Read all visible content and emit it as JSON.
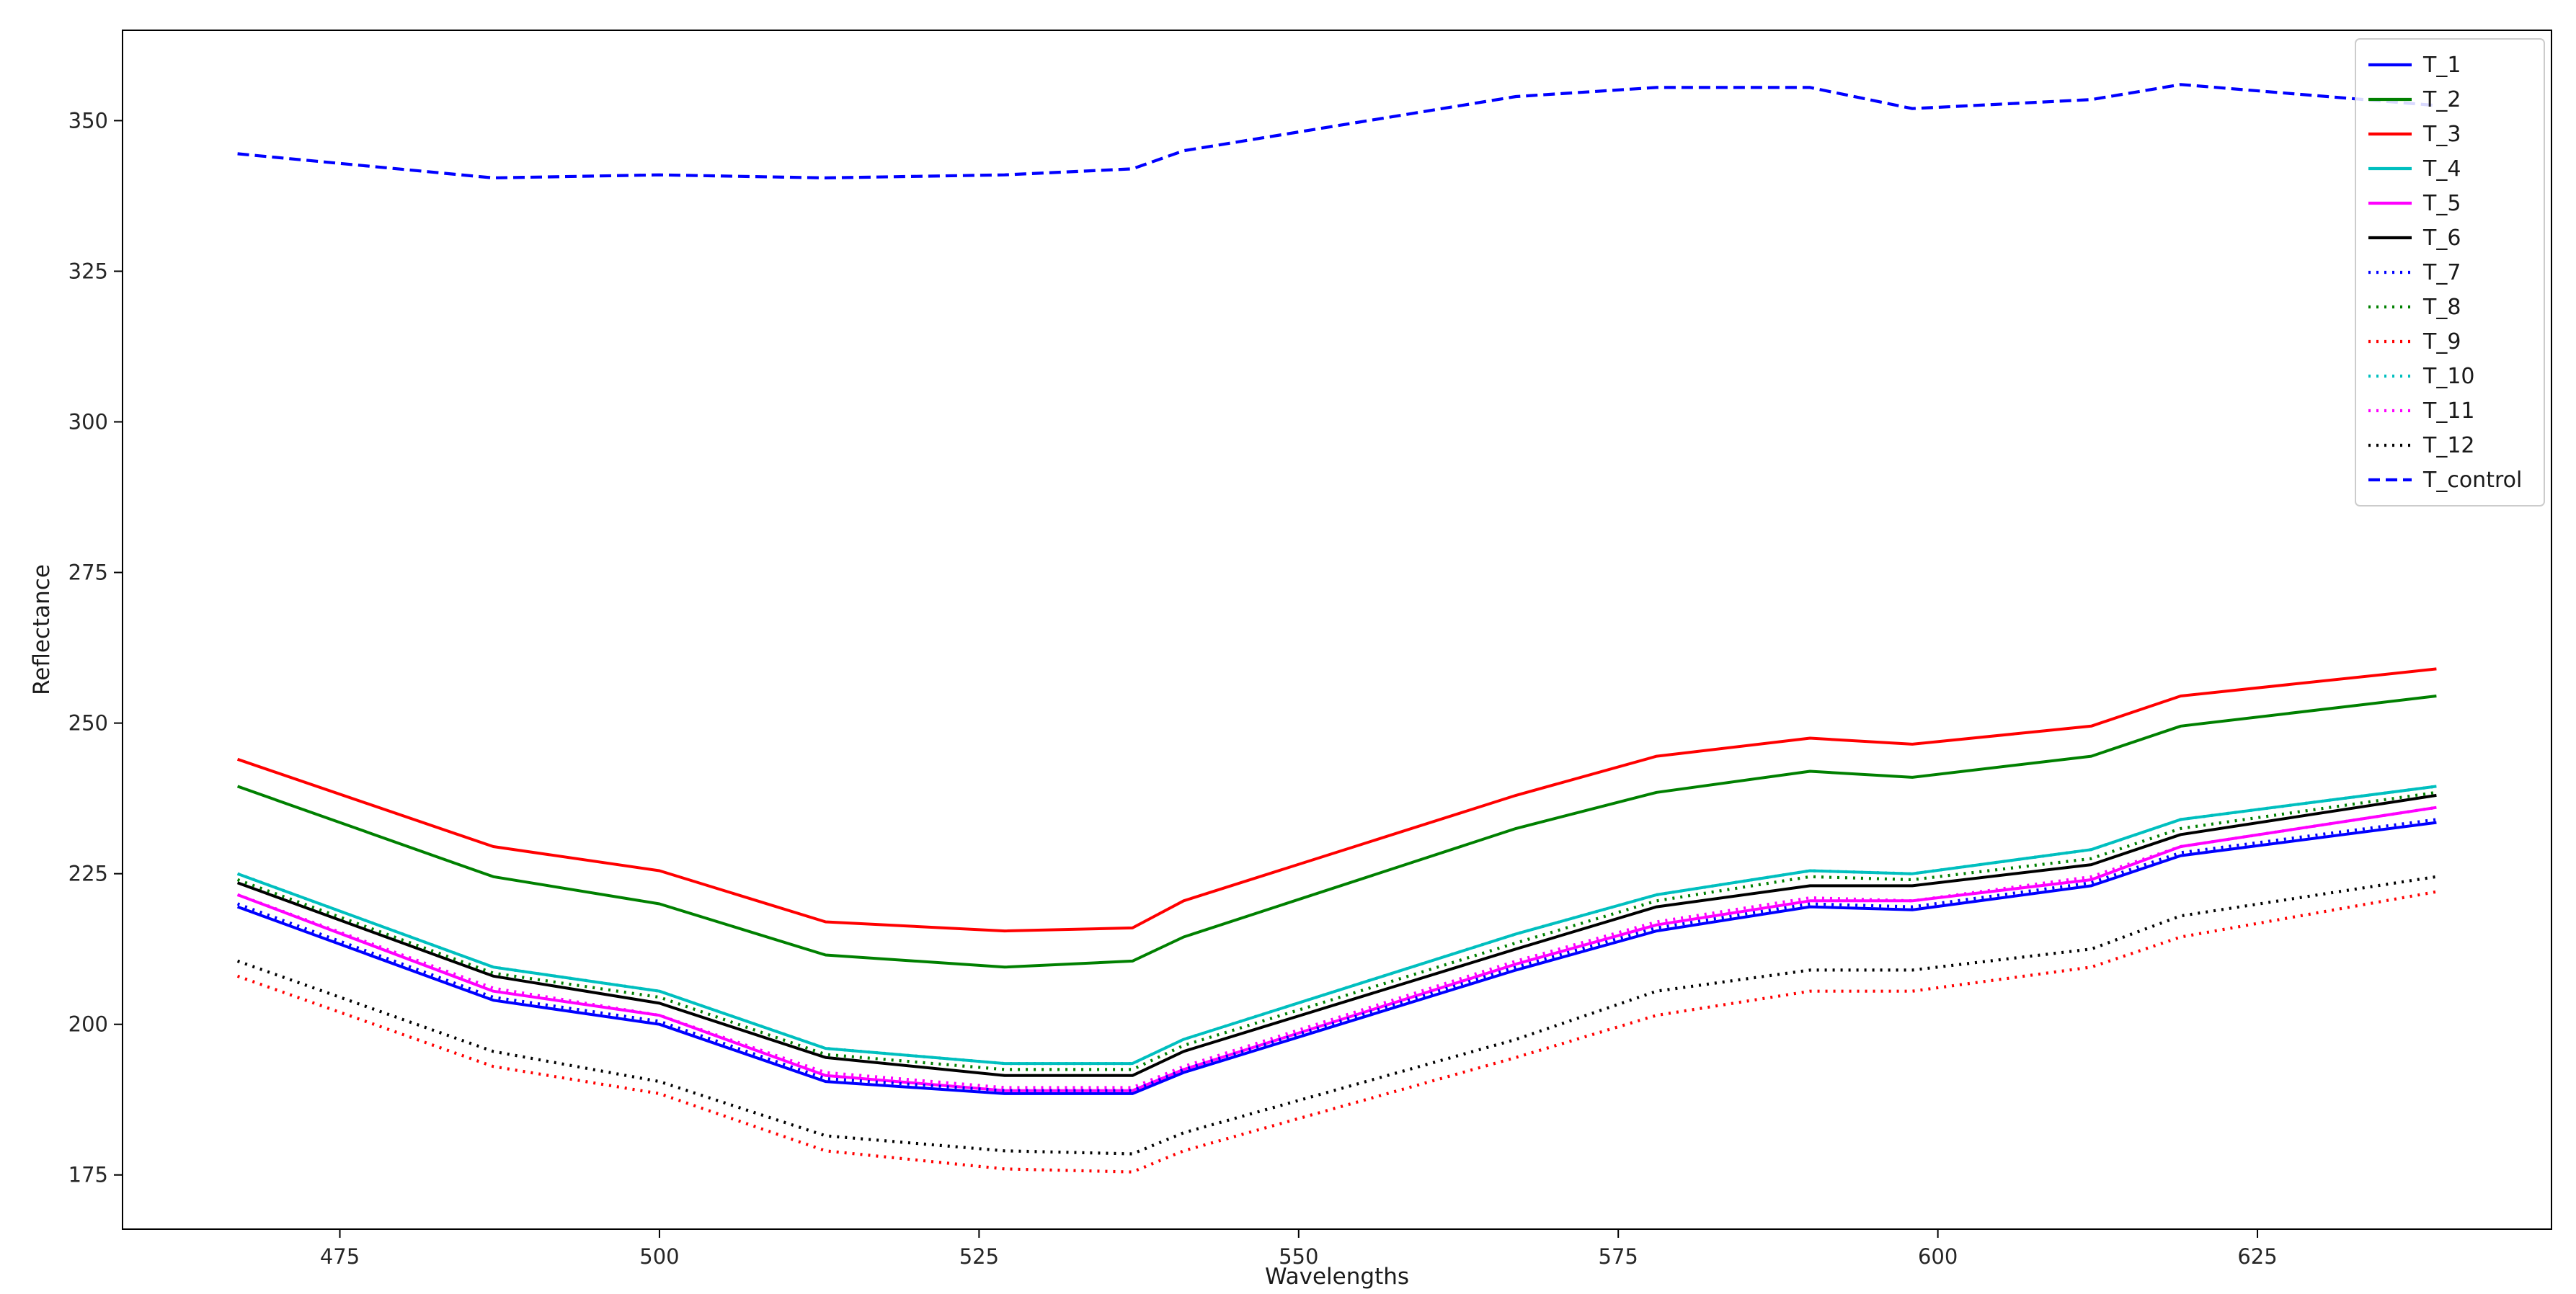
{
  "chart_data": {
    "type": "line",
    "title": "",
    "xlabel": "Wavelengths",
    "ylabel": "Reflectance",
    "xlim": [
      458,
      648
    ],
    "ylim": [
      166,
      365
    ],
    "xticks": [
      475,
      500,
      525,
      550,
      575,
      600,
      625
    ],
    "xtick_labels": [
      "475",
      "500",
      "525",
      "550",
      "575",
      "600",
      "625"
    ],
    "yticks": [
      175,
      200,
      225,
      250,
      275,
      300,
      325,
      350
    ],
    "ytick_labels": [
      "175",
      "200",
      "225",
      "250",
      "275",
      "300",
      "325",
      "350"
    ],
    "grid": false,
    "legend_position": "top-right",
    "x": [
      467,
      487,
      500,
      513,
      527,
      537,
      541,
      567,
      578,
      590,
      598,
      612,
      619,
      639
    ],
    "series": [
      {
        "name": "T_1",
        "color": "#0000ff",
        "style": "solid",
        "values": [
          219.5,
          204,
          200,
          190.5,
          188.5,
          188.5,
          192,
          209,
          215.5,
          219.5,
          219,
          223,
          228,
          233.5
        ]
      },
      {
        "name": "T_2",
        "color": "#008000",
        "style": "solid",
        "values": [
          239.5,
          224.5,
          220,
          211.5,
          209.5,
          210.5,
          214.5,
          232.5,
          238.5,
          242,
          241,
          244.5,
          249.5,
          254.5
        ]
      },
      {
        "name": "T_3",
        "color": "#ff0000",
        "style": "solid",
        "values": [
          244,
          229.5,
          225.5,
          217,
          215.5,
          216,
          220.5,
          238,
          244.5,
          247.5,
          246.5,
          249.5,
          254.5,
          259
        ]
      },
      {
        "name": "T_4",
        "color": "#00bfbf",
        "style": "solid",
        "values": [
          225,
          209.5,
          205.5,
          196,
          193.5,
          193.5,
          197.5,
          215,
          221.5,
          225.5,
          225,
          229,
          234,
          239.5
        ]
      },
      {
        "name": "T_5",
        "color": "#ff00ff",
        "style": "solid",
        "values": [
          221.5,
          205.5,
          201.5,
          191.5,
          189,
          189,
          192.5,
          210,
          216.5,
          220.5,
          220.5,
          224,
          229.5,
          236
        ]
      },
      {
        "name": "T_6",
        "color": "#000000",
        "style": "solid",
        "values": [
          223.5,
          208,
          203.5,
          194.5,
          191.5,
          191.5,
          195.5,
          212.5,
          219.5,
          223,
          223,
          226.5,
          231.5,
          238
        ]
      },
      {
        "name": "T_7",
        "color": "#0000ff",
        "style": "dotted",
        "values": [
          220,
          204.5,
          200.5,
          191,
          189,
          189,
          192.5,
          209.5,
          216,
          220,
          219.5,
          223.5,
          228.5,
          234
        ]
      },
      {
        "name": "T_8",
        "color": "#008000",
        "style": "dotted",
        "values": [
          224,
          208.5,
          204.5,
          195,
          192.5,
          192.5,
          196.5,
          213.5,
          220.5,
          224.5,
          224,
          227.5,
          232.5,
          238.5
        ]
      },
      {
        "name": "T_9",
        "color": "#ff0000",
        "style": "dotted",
        "values": [
          208,
          193,
          188.5,
          179,
          176,
          175.5,
          179,
          194.5,
          201.5,
          205.5,
          205.5,
          209.5,
          214.5,
          222
        ]
      },
      {
        "name": "T_10",
        "color": "#00bfbf",
        "style": "dotted",
        "values": [
          225,
          209.5,
          205.5,
          196,
          193.5,
          193.5,
          197.5,
          215,
          221.5,
          225.5,
          225,
          229,
          234,
          239.5
        ]
      },
      {
        "name": "T_11",
        "color": "#ff00ff",
        "style": "dotted",
        "values": [
          221.5,
          206,
          201.5,
          192,
          189.5,
          189.5,
          193,
          210.5,
          217,
          221,
          220.5,
          224.5,
          229.5,
          236
        ]
      },
      {
        "name": "T_12",
        "color": "#000000",
        "style": "dotted",
        "values": [
          210.5,
          195.5,
          190.5,
          181.5,
          179,
          178.5,
          182,
          197.5,
          205.5,
          209,
          209,
          212.5,
          218,
          224.5
        ]
      },
      {
        "name": "T_control",
        "color": "#0000ff",
        "style": "dashed",
        "values": [
          344.5,
          340.5,
          341,
          340.5,
          341,
          342,
          345,
          354,
          355.5,
          355.5,
          352,
          353.5,
          356,
          352.5
        ]
      }
    ]
  }
}
